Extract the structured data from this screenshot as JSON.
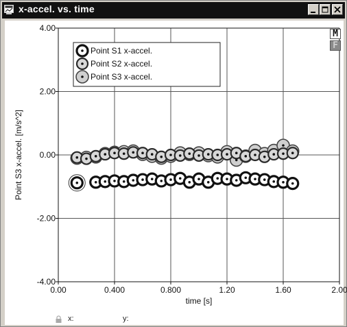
{
  "window": {
    "title": "x-accel. vs. time",
    "minimize_label": "minimize",
    "restore_label": "restore",
    "close_label": "close"
  },
  "toolbar": {
    "m_label": "M",
    "f_label": "F"
  },
  "statusbar": {
    "x_label": "x:",
    "y_label": "y:"
  },
  "colors": {
    "titlebar": "#111111",
    "window_face": "#d4d0c8",
    "plot_bg": "#ffffff",
    "grid": "#555555",
    "series_s1": "#111111",
    "series_s2": "#333333",
    "series_s3": "#444444"
  },
  "icons": {
    "app": "chart-window-icon",
    "lock": "lock-icon"
  },
  "chart_data": {
    "type": "scatter",
    "title": "",
    "xlabel": "time [s]",
    "ylabel": "Point S3 x-accel. [m/s^2]",
    "xlim": [
      0,
      2.0
    ],
    "ylim": [
      -4.0,
      4.0
    ],
    "xticks": [
      0,
      0.4,
      0.8,
      1.2,
      1.6,
      2.0
    ],
    "xtick_labels": [
      "0.00",
      "0.400",
      "0.800",
      "1.20",
      "1.60",
      "2.00"
    ],
    "yticks": [
      -4.0,
      -2.0,
      0.0,
      2.0,
      4.0
    ],
    "ytick_labels": [
      "-4.00",
      "-2.00",
      "0.00",
      "2.00",
      "4.00"
    ],
    "grid": true,
    "legend_position": "top-left",
    "series": [
      {
        "name": "Point S1 x-accel.",
        "marker": "ring-dot-thick",
        "x": [
          0.133,
          0.267,
          0.333,
          0.4,
          0.467,
          0.533,
          0.6,
          0.667,
          0.733,
          0.8,
          0.867,
          0.933,
          1.0,
          1.067,
          1.133,
          1.2,
          1.267,
          1.333,
          1.4,
          1.467,
          1.533,
          1.6,
          1.667
        ],
        "y": [
          -0.88,
          -0.86,
          -0.84,
          -0.82,
          -0.84,
          -0.8,
          -0.78,
          -0.76,
          -0.82,
          -0.78,
          -0.74,
          -0.86,
          -0.76,
          -0.86,
          -0.74,
          -0.76,
          -0.8,
          -0.72,
          -0.76,
          -0.78,
          -0.84,
          -0.86,
          -0.9
        ]
      },
      {
        "name": "Point S2 x-accel.",
        "marker": "ring-dot-thin",
        "x": [
          0.133,
          0.2,
          0.267,
          0.333,
          0.4,
          0.467,
          0.533,
          0.6,
          0.667,
          0.733,
          0.8,
          0.867,
          0.933,
          1.0,
          1.067,
          1.133,
          1.2,
          1.267,
          1.333,
          1.4,
          1.467,
          1.533,
          1.6,
          1.667
        ],
        "y": [
          -0.08,
          -0.12,
          -0.04,
          0.02,
          0.06,
          0.04,
          0.08,
          0.06,
          0.02,
          -0.06,
          0.0,
          -0.02,
          0.04,
          -0.02,
          0.02,
          0.0,
          0.02,
          0.06,
          -0.04,
          0.0,
          -0.06,
          0.02,
          0.04,
          0.06
        ]
      },
      {
        "name": "Point S3 x-accel.",
        "marker": "ring-dot-light",
        "x": [
          0.133,
          0.2,
          0.267,
          0.333,
          0.4,
          0.467,
          0.533,
          0.6,
          0.667,
          0.733,
          0.8,
          0.867,
          0.933,
          1.0,
          1.067,
          1.133,
          1.2,
          1.267,
          1.333,
          1.4,
          1.467,
          1.533,
          1.6,
          1.667
        ],
        "y": [
          -0.1,
          -0.08,
          -0.06,
          0.04,
          0.08,
          0.1,
          0.12,
          0.02,
          -0.04,
          -0.1,
          -0.04,
          0.06,
          0.02,
          0.06,
          -0.02,
          -0.06,
          0.1,
          -0.16,
          -0.04,
          0.14,
          0.04,
          0.14,
          0.3,
          0.12
        ]
      }
    ]
  }
}
